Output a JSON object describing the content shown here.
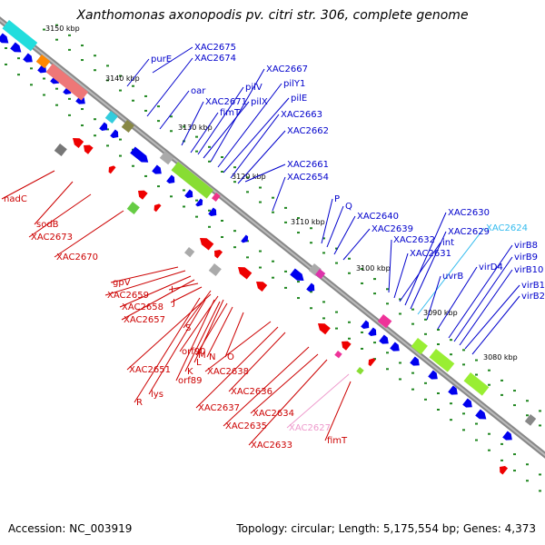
{
  "title": "Xanthomonas axonopodis pv. citri str. 306, complete genome",
  "footer": {
    "accession": "Accession: NC_003919",
    "summary": "Topology: circular; Length: 5,175,554 bp; Genes: 4,373"
  },
  "colors": {
    "forward_label": "#0000cc",
    "reverse_label": "#cc0000",
    "highlight_blue": "#33bbee",
    "highlight_pink": "#ee99cc",
    "backbone": "#888888",
    "forward_arrow": "#0000ee",
    "reverse_arrow": "#ee0000",
    "dots": "#228822"
  },
  "ticks": [
    "3150 kbp",
    "3140 kbp",
    "3130 kbp",
    "3120 kbp",
    "3110 kbp",
    "3100 kbp",
    "3090 kbp",
    "3080 kbp"
  ],
  "forward_labels": [
    "purE",
    "XAC2675",
    "XAC2674",
    "oar",
    "XAC2671",
    "fimT",
    "pilV",
    "pilX",
    "XAC2667",
    "pilY1",
    "pilE",
    "XAC2663",
    "XAC2662",
    "XAC2661",
    "XAC2654",
    "P",
    "Q",
    "XAC2640",
    "XAC2639",
    "XAC2632",
    "XAC2631",
    "int",
    "XAC2630",
    "XAC2629",
    "XAC2624",
    "uvrB",
    "virD4",
    "virB8",
    "virB9",
    "virB10",
    "virB11",
    "virB2"
  ],
  "reverse_labels": [
    "nadC",
    "sodB",
    "XAC2673",
    "XAC2670",
    "gpV",
    "XAC2659",
    "XAC2658",
    "XAC2657",
    "I",
    "J",
    "S",
    "orf90",
    "L",
    "M",
    "N",
    "O",
    "orf89",
    "K",
    "XAC2651",
    "lys",
    "R",
    "XAC2638",
    "XAC2637",
    "XAC2636",
    "XAC2635",
    "XAC2634",
    "XAC2633",
    "XAC2627",
    "fimT"
  ]
}
